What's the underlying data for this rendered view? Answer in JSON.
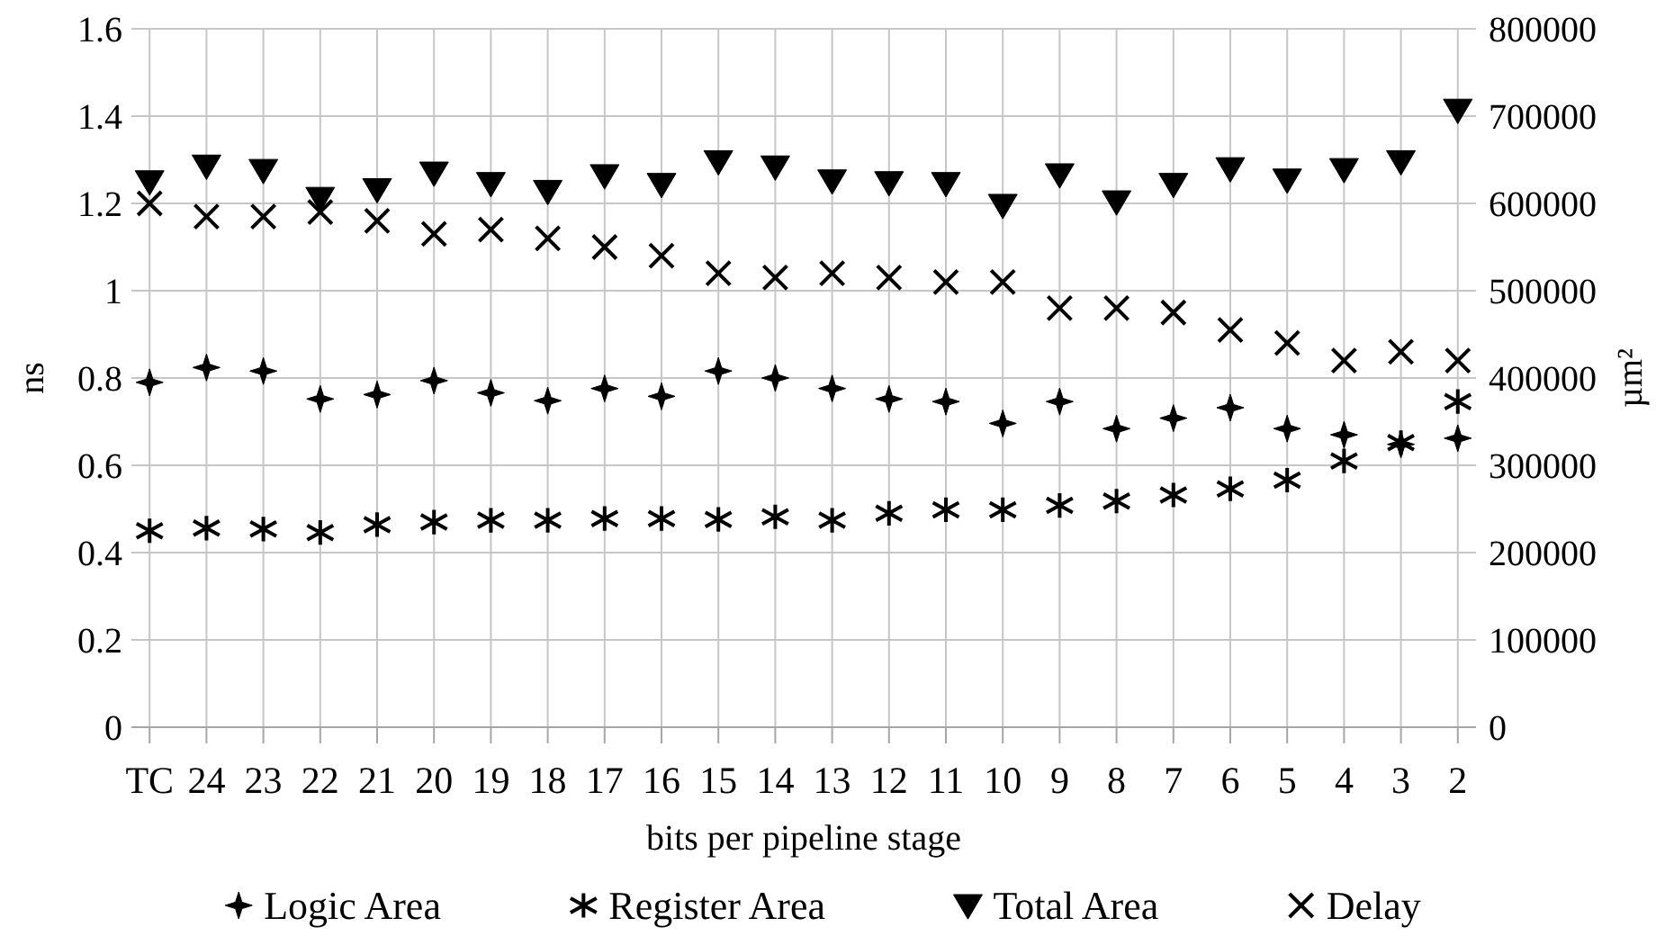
{
  "chart_data": {
    "type": "scatter",
    "xlabel": "bits per pipeline stage",
    "ylabel": "ns",
    "y2label": "µm²",
    "categories": [
      "TC",
      "24",
      "23",
      "22",
      "21",
      "20",
      "19",
      "18",
      "17",
      "16",
      "15",
      "14",
      "13",
      "12",
      "11",
      "10",
      "9",
      "8",
      "7",
      "6",
      "5",
      "4",
      "3",
      "2"
    ],
    "series": [
      {
        "name": "Logic Area",
        "color": "#000000",
        "axis": "y2",
        "marker": "star",
        "values": [
          395000,
          412000,
          408000,
          376000,
          381000,
          397000,
          383000,
          374000,
          388000,
          379000,
          408000,
          400000,
          388000,
          376000,
          373000,
          348000,
          373000,
          342000,
          354000,
          366000,
          342000,
          335000,
          324000,
          331000
        ]
      },
      {
        "name": "Register Area",
        "color": "#000000",
        "axis": "y2",
        "values": [
          225000,
          228000,
          227000,
          223000,
          232000,
          235000,
          237000,
          237000,
          239000,
          239000,
          238000,
          241000,
          237000,
          245000,
          249000,
          249000,
          254000,
          259000,
          266000,
          273000,
          283000,
          305000,
          326000,
          373000
        ]
      },
      {
        "name": "Total Area",
        "color": "#000000",
        "axis": "y2",
        "marker": "triangle",
        "values": [
          625000,
          643000,
          638000,
          606000,
          616000,
          635000,
          623000,
          614000,
          632000,
          622000,
          648000,
          642000,
          626000,
          624000,
          623000,
          598000,
          633000,
          602000,
          622000,
          640000,
          627000,
          639000,
          648000,
          707000
        ]
      },
      {
        "name": "Delay",
        "color": "#000000",
        "axis": "y",
        "marker": "cross",
        "values": [
          1.2,
          1.17,
          1.17,
          1.18,
          1.16,
          1.13,
          1.14,
          1.12,
          1.1,
          1.08,
          1.04,
          1.03,
          1.04,
          1.03,
          1.02,
          1.02,
          0.96,
          0.96,
          0.95,
          0.91,
          0.88,
          0.84,
          0.86,
          0.84
        ]
      }
    ],
    "ylim": [
      0,
      1.6
    ],
    "yticks": [
      0,
      0.2,
      0.4,
      0.6,
      0.8,
      1,
      1.2,
      1.4,
      1.6
    ],
    "y2lim": [
      0,
      800000
    ],
    "y2ticks": [
      0,
      100000,
      200000,
      300000,
      400000,
      500000,
      600000,
      700000,
      800000
    ],
    "grid": true,
    "legend": "bottom"
  }
}
